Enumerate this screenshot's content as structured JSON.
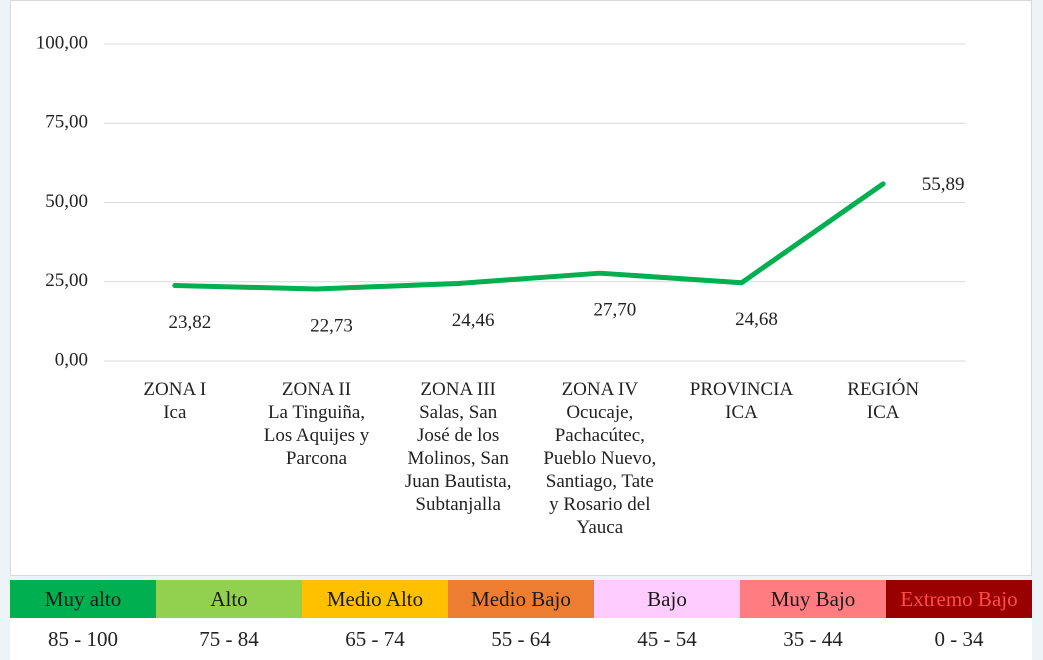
{
  "chart_data": {
    "type": "line",
    "categories": [
      "ZONA I\nIca",
      "ZONA II\nLa Tinguiña,\nLos Aquijes y\nParcona",
      "ZONA III\nSalas, San\nJosé de los\nMolinos, San\nJuan Bautista,\nSubtanjalla",
      "ZONA IV\nOcucaje,\nPachacútec,\nPueblo Nuevo,\nSantiago, Tate\ny Rosario del\nYauca",
      "PROVINCIA\nICA",
      "REGIÓN\nICA"
    ],
    "series": [
      {
        "color": "#00b050",
        "values": [
          23.82,
          22.73,
          24.46,
          27.7,
          24.68,
          55.89
        ],
        "value_labels": [
          "23,82",
          "22,73",
          "24,46",
          "27,70",
          "24,68",
          "55,89"
        ]
      }
    ],
    "ylim": [
      0,
      100
    ],
    "yticks": [
      {
        "value": 0,
        "label": "0,00"
      },
      {
        "value": 25,
        "label": "25,00"
      },
      {
        "value": 50,
        "label": "50,00"
      },
      {
        "value": 75,
        "label": "75,00"
      },
      {
        "value": 100,
        "label": "100,00"
      }
    ],
    "grid": true
  },
  "scale": [
    {
      "label": "Muy alto",
      "range": "85 - 100",
      "color": "#00b050",
      "text_color": "#1a1a1a"
    },
    {
      "label": "Alto",
      "range": "75 - 84",
      "color": "#92d050",
      "text_color": "#1a1a1a"
    },
    {
      "label": "Medio Alto",
      "range": "65 - 74",
      "color": "#ffc000",
      "text_color": "#1a1a1a"
    },
    {
      "label": "Medio Bajo",
      "range": "55 - 64",
      "color": "#ed7d31",
      "text_color": "#1a1a1a"
    },
    {
      "label": "Bajo",
      "range": "45 - 54",
      "color": "#ffccff",
      "text_color": "#1a1a1a"
    },
    {
      "label": "Muy Bajo",
      "range": "35 - 44",
      "color": "#ff7c80",
      "text_color": "#1a1a1a"
    },
    {
      "label": "Extremo Bajo",
      "range": "0 - 34",
      "color": "#990000",
      "text_color": "#ff4d4d"
    }
  ]
}
